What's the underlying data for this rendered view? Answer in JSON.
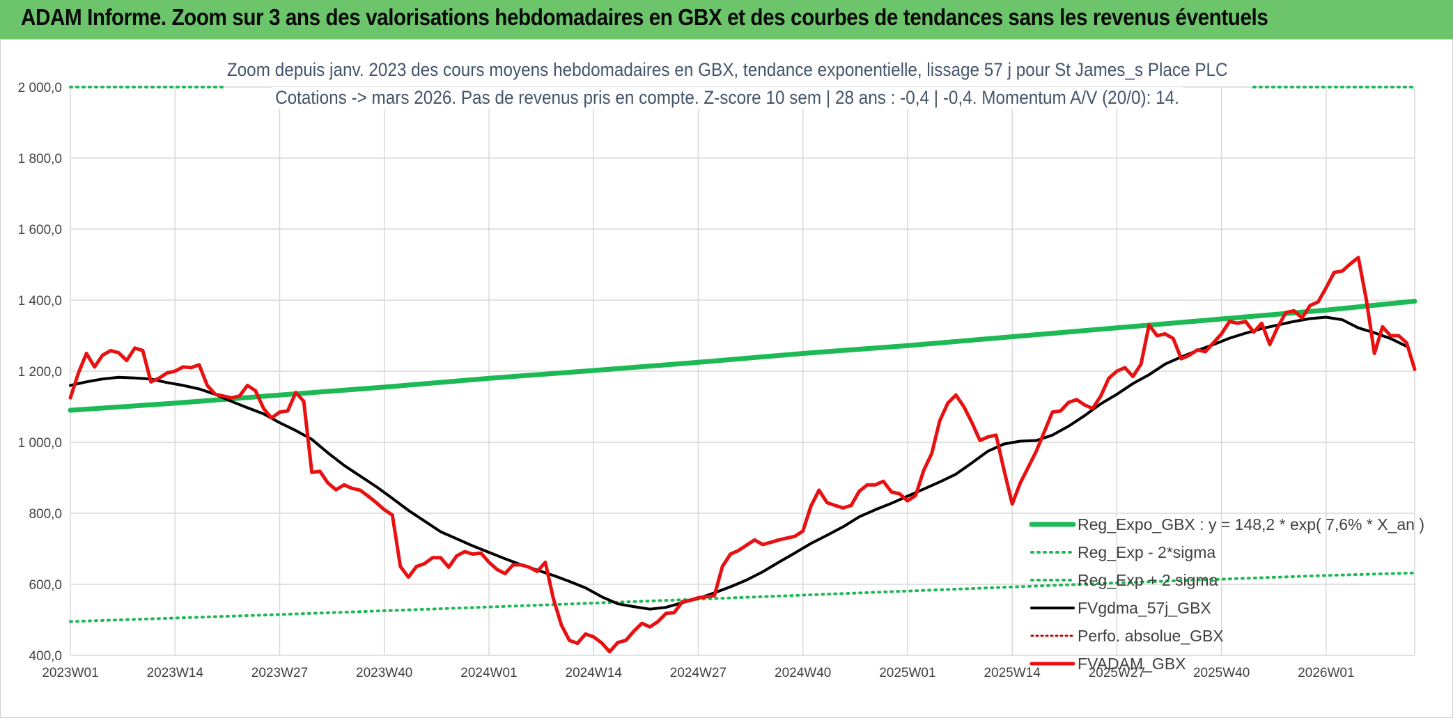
{
  "header": {
    "title": "ADAM Informe. Zoom sur 3 ans des valorisations hebdomadaires en GBX et des courbes de tendances sans les revenus éventuels"
  },
  "chart_data": {
    "type": "line",
    "subtitle_line1": "Zoom depuis janv. 2023 des cours moyens hebdomadaires en GBX, tendance exponentielle, lissage 57 j pour St James_s Place PLC",
    "subtitle_line2": "Cotations -> mars 2026. Pas de revenus pris en compte. Z-score 10 sem | 28 ans : -0,4 | -0,4. Momentum A/V (20/0): 14.",
    "ylim": [
      400,
      2000
    ],
    "y_ticks": [
      "2 000,0",
      "1 800,0",
      "1 600,0",
      "1 400,0",
      "1 200,0",
      "1 000,0",
      "800,0",
      "600,0",
      "400,0"
    ],
    "x_ticks": [
      "2023W01",
      "2023W14",
      "2023W27",
      "2023W40",
      "2024W01",
      "2024W14",
      "2024W27",
      "2024W40",
      "2025W01",
      "2025W14",
      "2025W27",
      "2025W40",
      "2026W01"
    ],
    "grid": true,
    "legend_position": "right",
    "colors": {
      "reg_expo": "#1db954",
      "sigma": "#1db954",
      "fvgdma": "#000000",
      "perfo": "#c00000",
      "fvadam": "#e81010"
    },
    "legend": [
      "Reg_Expo_GBX : y = 148,2 * exp( 7,6% *  X_an )",
      "Reg_Exp - 2*sigma",
      "Reg_Exp + 2 sigma",
      "FVgdma_57j_GBX",
      "Perfo. absolue_GBX",
      "FVADAM_GBX"
    ],
    "series": [
      {
        "name": "Reg_Expo_GBX : y = 148,2 * exp( 7,6% *  X_an )",
        "style": "solid-thick",
        "points": [
          [
            0,
            1090
          ],
          [
            13,
            1110
          ],
          [
            26,
            1133
          ],
          [
            39,
            1155
          ],
          [
            52,
            1180
          ],
          [
            65,
            1202
          ],
          [
            78,
            1225
          ],
          [
            91,
            1250
          ],
          [
            104,
            1272
          ],
          [
            117,
            1297
          ],
          [
            130,
            1322
          ],
          [
            143,
            1347
          ],
          [
            156,
            1372
          ],
          [
            167,
            1397
          ]
        ]
      },
      {
        "name": "Reg_Exp - 2*sigma",
        "style": "dotted",
        "points": [
          [
            0,
            495
          ],
          [
            26,
            515
          ],
          [
            52,
            536
          ],
          [
            78,
            558
          ],
          [
            104,
            581
          ],
          [
            130,
            604
          ],
          [
            156,
            625
          ],
          [
            167,
            632
          ]
        ]
      },
      {
        "name": "Reg_Exp + 2 sigma",
        "style": "dotted",
        "points": [
          [
            0,
            2000
          ],
          [
            19,
            2000
          ],
          [
            null,
            null
          ],
          [
            147,
            2000
          ],
          [
            167,
            2000
          ]
        ]
      },
      {
        "name": "FVgdma_57j_GBX",
        "style": "solid",
        "points": [
          [
            0,
            1160
          ],
          [
            2,
            1170
          ],
          [
            4,
            1178
          ],
          [
            6,
            1183
          ],
          [
            8,
            1181
          ],
          [
            10,
            1178
          ],
          [
            12,
            1168
          ],
          [
            14,
            1160
          ],
          [
            16,
            1150
          ],
          [
            18,
            1135
          ],
          [
            20,
            1115
          ],
          [
            22,
            1097
          ],
          [
            24,
            1080
          ],
          [
            26,
            1055
          ],
          [
            28,
            1033
          ],
          [
            30,
            1008
          ],
          [
            32,
            970
          ],
          [
            34,
            935
          ],
          [
            36,
            905
          ],
          [
            38,
            875
          ],
          [
            40,
            842
          ],
          [
            42,
            808
          ],
          [
            44,
            778
          ],
          [
            46,
            748
          ],
          [
            48,
            728
          ],
          [
            50,
            708
          ],
          [
            52,
            690
          ],
          [
            54,
            672
          ],
          [
            56,
            655
          ],
          [
            58,
            640
          ],
          [
            60,
            625
          ],
          [
            62,
            608
          ],
          [
            64,
            590
          ],
          [
            66,
            565
          ],
          [
            68,
            545
          ],
          [
            70,
            537
          ],
          [
            72,
            530
          ],
          [
            74,
            535
          ],
          [
            76,
            548
          ],
          [
            78,
            560
          ],
          [
            80,
            576
          ],
          [
            82,
            593
          ],
          [
            84,
            612
          ],
          [
            86,
            635
          ],
          [
            88,
            662
          ],
          [
            90,
            688
          ],
          [
            92,
            715
          ],
          [
            94,
            738
          ],
          [
            96,
            762
          ],
          [
            98,
            790
          ],
          [
            100,
            810
          ],
          [
            102,
            828
          ],
          [
            104,
            848
          ],
          [
            106,
            868
          ],
          [
            108,
            888
          ],
          [
            110,
            910
          ],
          [
            112,
            942
          ],
          [
            114,
            975
          ],
          [
            116,
            995
          ],
          [
            118,
            1003
          ],
          [
            120,
            1005
          ],
          [
            122,
            1020
          ],
          [
            124,
            1045
          ],
          [
            126,
            1075
          ],
          [
            128,
            1108
          ],
          [
            130,
            1135
          ],
          [
            132,
            1165
          ],
          [
            134,
            1190
          ],
          [
            136,
            1220
          ],
          [
            138,
            1240
          ],
          [
            140,
            1258
          ],
          [
            142,
            1275
          ],
          [
            144,
            1293
          ],
          [
            146,
            1307
          ],
          [
            148,
            1320
          ],
          [
            150,
            1330
          ],
          [
            152,
            1340
          ],
          [
            154,
            1348
          ],
          [
            156,
            1352
          ],
          [
            158,
            1345
          ],
          [
            160,
            1322
          ],
          [
            162,
            1308
          ],
          [
            164,
            1292
          ],
          [
            166,
            1270
          ]
        ]
      },
      {
        "name": "Perfo. absolue_GBX",
        "style": "dotted",
        "points": []
      },
      {
        "name": "FVADAM_GBX",
        "style": "solid-thick",
        "points": [
          [
            0,
            1125
          ],
          [
            1,
            1195
          ],
          [
            2,
            1250
          ],
          [
            3,
            1212
          ],
          [
            4,
            1245
          ],
          [
            5,
            1258
          ],
          [
            6,
            1252
          ],
          [
            7,
            1230
          ],
          [
            8,
            1265
          ],
          [
            9,
            1258
          ],
          [
            10,
            1170
          ],
          [
            11,
            1180
          ],
          [
            12,
            1195
          ],
          [
            13,
            1200
          ],
          [
            14,
            1212
          ],
          [
            15,
            1210
          ],
          [
            16,
            1218
          ],
          [
            17,
            1160
          ],
          [
            18,
            1135
          ],
          [
            19,
            1130
          ],
          [
            20,
            1125
          ],
          [
            21,
            1130
          ],
          [
            22,
            1160
          ],
          [
            23,
            1145
          ],
          [
            24,
            1095
          ],
          [
            25,
            1068
          ],
          [
            26,
            1085
          ],
          [
            27,
            1088
          ],
          [
            28,
            1140
          ],
          [
            29,
            1115
          ],
          [
            30,
            915
          ],
          [
            31,
            918
          ],
          [
            32,
            885
          ],
          [
            33,
            866
          ],
          [
            34,
            880
          ],
          [
            35,
            870
          ],
          [
            36,
            865
          ],
          [
            37,
            848
          ],
          [
            38,
            830
          ],
          [
            39,
            810
          ],
          [
            40,
            795
          ],
          [
            41,
            650
          ],
          [
            42,
            620
          ],
          [
            43,
            650
          ],
          [
            44,
            658
          ],
          [
            45,
            675
          ],
          [
            46,
            675
          ],
          [
            47,
            648
          ],
          [
            48,
            680
          ],
          [
            49,
            692
          ],
          [
            50,
            685
          ],
          [
            51,
            688
          ],
          [
            52,
            662
          ],
          [
            53,
            642
          ],
          [
            54,
            630
          ],
          [
            55,
            655
          ],
          [
            56,
            655
          ],
          [
            57,
            648
          ],
          [
            58,
            636
          ],
          [
            59,
            662
          ],
          [
            60,
            560
          ],
          [
            61,
            485
          ],
          [
            62,
            442
          ],
          [
            63,
            434
          ],
          [
            64,
            460
          ],
          [
            65,
            452
          ],
          [
            66,
            435
          ],
          [
            67,
            410
          ],
          [
            68,
            436
          ],
          [
            69,
            442
          ],
          [
            70,
            468
          ],
          [
            71,
            490
          ],
          [
            72,
            480
          ],
          [
            73,
            495
          ],
          [
            74,
            518
          ],
          [
            75,
            520
          ],
          [
            76,
            550
          ],
          [
            77,
            555
          ],
          [
            78,
            562
          ],
          [
            79,
            565
          ],
          [
            80,
            568
          ],
          [
            81,
            650
          ],
          [
            82,
            685
          ],
          [
            83,
            695
          ],
          [
            84,
            710
          ],
          [
            85,
            725
          ],
          [
            86,
            712
          ],
          [
            87,
            718
          ],
          [
            88,
            725
          ],
          [
            89,
            730
          ],
          [
            90,
            735
          ],
          [
            91,
            750
          ],
          [
            92,
            820
          ],
          [
            93,
            865
          ],
          [
            94,
            830
          ],
          [
            95,
            822
          ],
          [
            96,
            815
          ],
          [
            97,
            822
          ],
          [
            98,
            862
          ],
          [
            99,
            880
          ],
          [
            100,
            880
          ],
          [
            101,
            890
          ],
          [
            102,
            860
          ],
          [
            103,
            855
          ],
          [
            104,
            835
          ],
          [
            105,
            850
          ],
          [
            106,
            920
          ],
          [
            107,
            968
          ],
          [
            108,
            1060
          ],
          [
            109,
            1110
          ],
          [
            110,
            1133
          ],
          [
            111,
            1100
          ],
          [
            112,
            1055
          ],
          [
            113,
            1005
          ],
          [
            114,
            1015
          ],
          [
            115,
            1020
          ],
          [
            116,
            920
          ],
          [
            117,
            826
          ],
          [
            118,
            885
          ],
          [
            119,
            930
          ],
          [
            120,
            975
          ],
          [
            121,
            1030
          ],
          [
            122,
            1085
          ],
          [
            123,
            1088
          ],
          [
            124,
            1112
          ],
          [
            125,
            1120
          ],
          [
            126,
            1105
          ],
          [
            127,
            1095
          ],
          [
            128,
            1130
          ],
          [
            129,
            1180
          ],
          [
            130,
            1200
          ],
          [
            131,
            1210
          ],
          [
            132,
            1185
          ],
          [
            133,
            1220
          ],
          [
            134,
            1330
          ],
          [
            135,
            1300
          ],
          [
            136,
            1305
          ],
          [
            137,
            1292
          ],
          [
            138,
            1235
          ],
          [
            139,
            1245
          ],
          [
            140,
            1260
          ],
          [
            141,
            1255
          ],
          [
            142,
            1280
          ],
          [
            143,
            1305
          ],
          [
            144,
            1340
          ],
          [
            145,
            1335
          ],
          [
            146,
            1340
          ],
          [
            147,
            1310
          ],
          [
            148,
            1335
          ],
          [
            149,
            1275
          ],
          [
            150,
            1325
          ],
          [
            151,
            1365
          ],
          [
            152,
            1370
          ],
          [
            153,
            1350
          ],
          [
            154,
            1385
          ],
          [
            155,
            1395
          ],
          [
            156,
            1435
          ],
          [
            157,
            1478
          ],
          [
            158,
            1482
          ],
          [
            159,
            1502
          ],
          [
            160,
            1520
          ],
          [
            161,
            1400
          ],
          [
            162,
            1250
          ],
          [
            163,
            1325
          ],
          [
            164,
            1300
          ],
          [
            165,
            1300
          ],
          [
            166,
            1280
          ],
          [
            167,
            1205
          ]
        ]
      }
    ]
  }
}
